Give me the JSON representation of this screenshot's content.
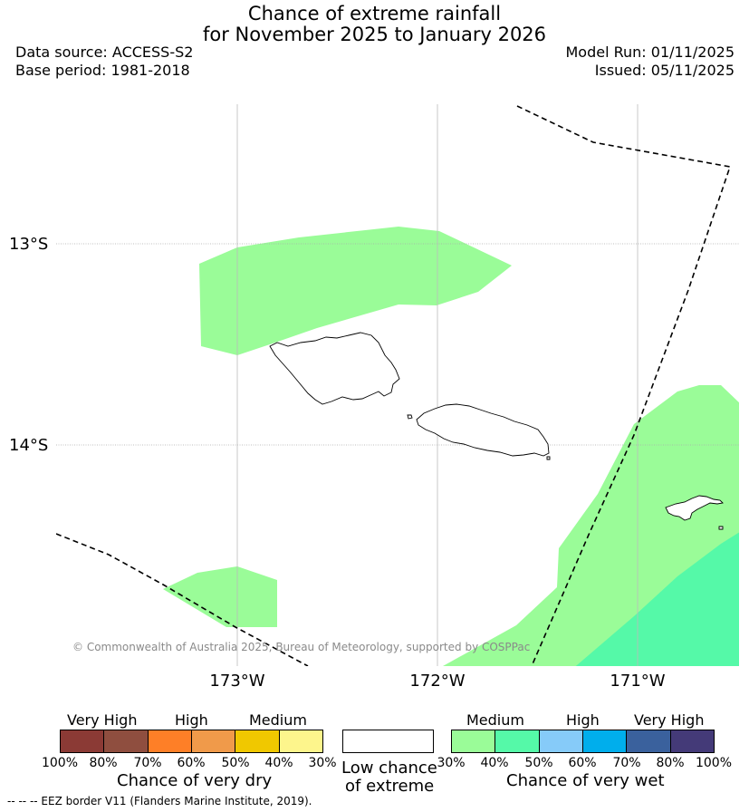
{
  "title": {
    "line1": "Chance of extreme rainfall",
    "line2": "for November 2025 to January 2026"
  },
  "meta": {
    "data_source": "Data source: ACCESS-S2",
    "base_period": "Base period: 1981-2018",
    "model_run": "Model Run: 01/11/2025",
    "issued": "Issued: 05/11/2025"
  },
  "map": {
    "lat_labels": [
      "13°S",
      "14°S"
    ],
    "lon_labels": [
      "173°W",
      "172°W",
      "171°W"
    ],
    "copyright": "© Commonwealth of Australia 2025, Bureau of Meteorology, supported by COSPPac",
    "colors": {
      "wet_medium_light": "#9afc98",
      "wet_medium": "#55f9a8"
    }
  },
  "legend": {
    "dry": {
      "groups": [
        "Very High",
        "High",
        "Medium"
      ],
      "ticks": [
        "100%",
        "80%",
        "70%",
        "60%",
        "50%",
        "40%",
        "30%"
      ],
      "colors": [
        "#8b3a35",
        "#8f4e3f",
        "#fe7f27",
        "#f09a4a",
        "#f0c800",
        "#fdf58c"
      ],
      "title": "Chance of very dry"
    },
    "low": {
      "line1": "Low chance",
      "line2": "of extreme"
    },
    "wet": {
      "groups": [
        "Medium",
        "High",
        "Very High"
      ],
      "ticks": [
        "30%",
        "40%",
        "50%",
        "60%",
        "70%",
        "80%",
        "100%"
      ],
      "colors": [
        "#9afc98",
        "#55f9a8",
        "#86cbf9",
        "#00aeec",
        "#3a619d",
        "#443a78"
      ],
      "title": "Chance of very wet"
    }
  },
  "footnote": "-- -- -- EEZ border V11 (Flanders Marine Institute, 2019)."
}
